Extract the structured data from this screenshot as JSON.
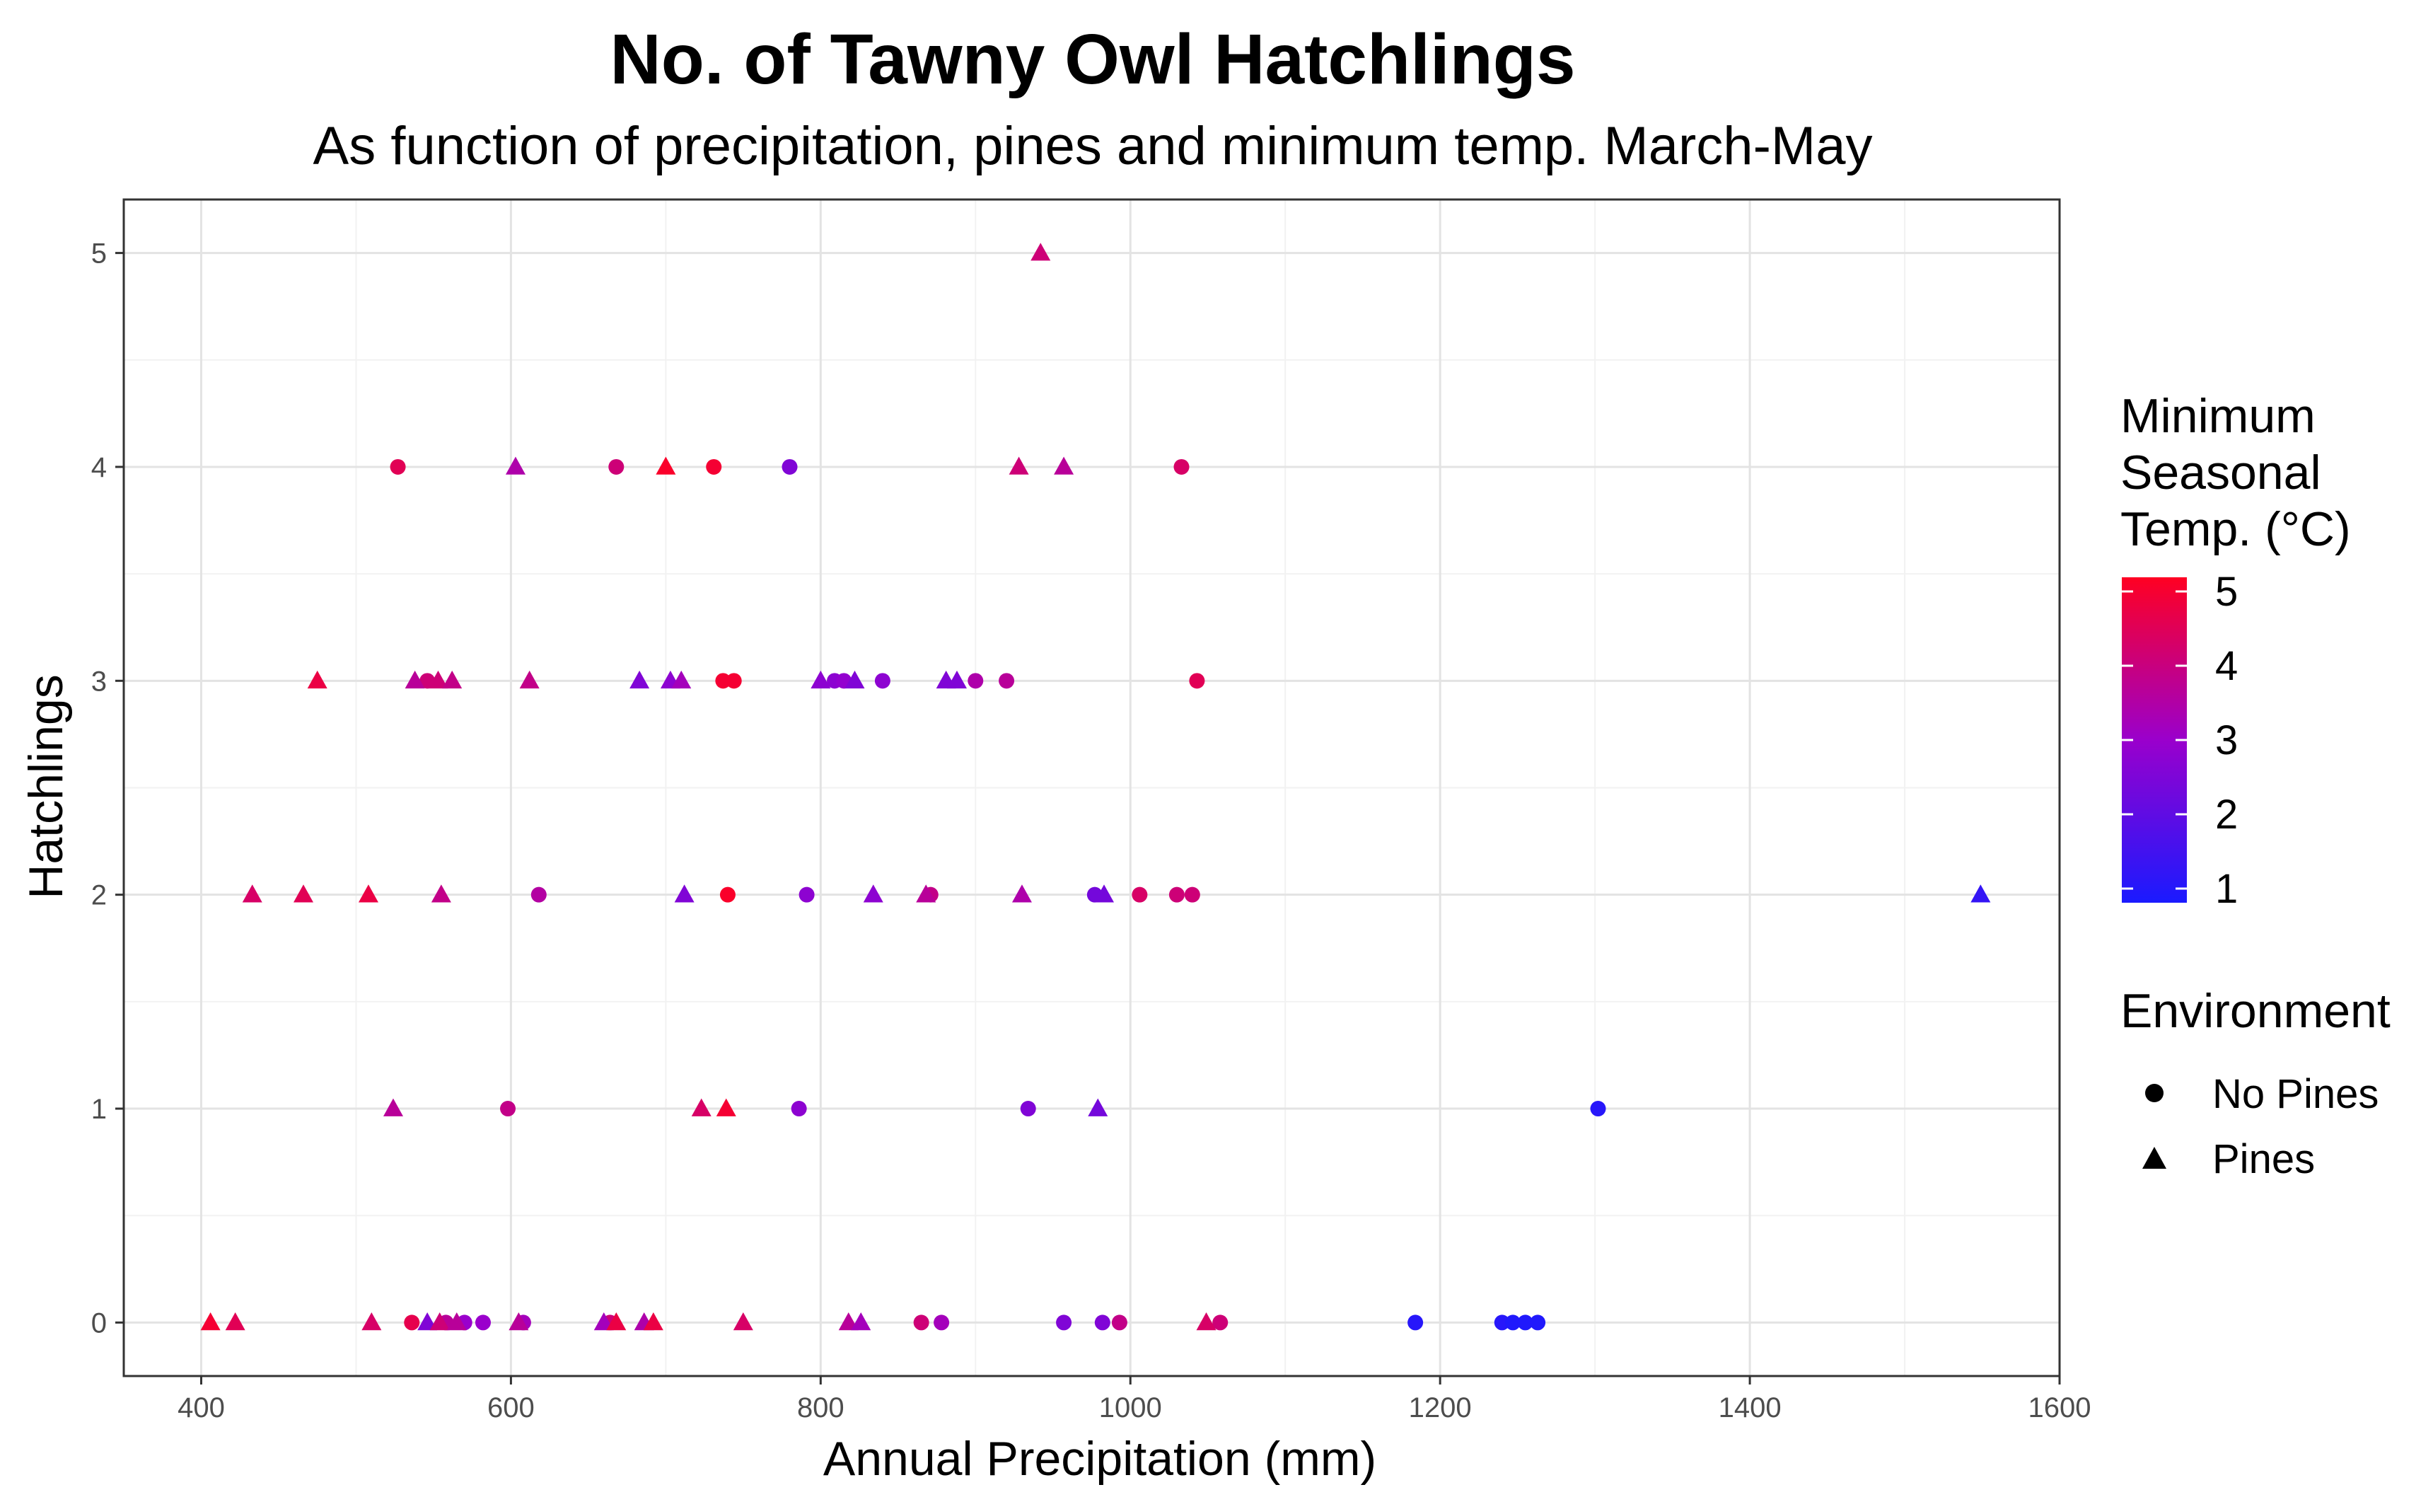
{
  "chart_data": {
    "type": "scatter",
    "title": "No. of Tawny Owl Hatchlings",
    "subtitle": "As function of precipitation, pines and minimum temp. March-May",
    "xlabel": "Annual Precipitation (mm)",
    "ylabel": "Hatchlings",
    "xlim": [
      350,
      1600
    ],
    "ylim": [
      -0.25,
      5.25
    ],
    "x_ticks": [
      "400",
      "600",
      "800",
      "1000",
      "1200",
      "1400",
      "1600"
    ],
    "y_ticks": [
      "0",
      "1",
      "2",
      "3",
      "4",
      "5"
    ],
    "grid": true,
    "color_legend": {
      "title_lines": [
        "Minimum",
        "Seasonal",
        "Temp. (°C)"
      ],
      "range": [
        1,
        5
      ],
      "ticks": [
        "1",
        "2",
        "3",
        "4",
        "5"
      ],
      "low_color": "#1a1aff",
      "mid_color": "#9a00cc",
      "high_color": "#ff0022"
    },
    "shape_legend": {
      "title": "Environment",
      "entries": [
        {
          "label": "No Pines",
          "shape": "circle"
        },
        {
          "label": "Pines",
          "shape": "triangle"
        }
      ]
    },
    "series": [
      {
        "name": "No Pines",
        "shape": "circle",
        "points": [
          {
            "x": 527,
            "y": 4,
            "temp": 4.4
          },
          {
            "x": 668,
            "y": 4,
            "temp": 4.0
          },
          {
            "x": 731,
            "y": 4,
            "temp": 4.8
          },
          {
            "x": 780,
            "y": 4,
            "temp": 2.6
          },
          {
            "x": 1033,
            "y": 4,
            "temp": 4.2
          },
          {
            "x": 546,
            "y": 3,
            "temp": 4.0
          },
          {
            "x": 737,
            "y": 3,
            "temp": 4.8
          },
          {
            "x": 744,
            "y": 3,
            "temp": 4.8
          },
          {
            "x": 809,
            "y": 3,
            "temp": 2.8
          },
          {
            "x": 815,
            "y": 3,
            "temp": 2.9
          },
          {
            "x": 840,
            "y": 3,
            "temp": 2.8
          },
          {
            "x": 900,
            "y": 3,
            "temp": 3.4
          },
          {
            "x": 920,
            "y": 3,
            "temp": 3.6
          },
          {
            "x": 1043,
            "y": 3,
            "temp": 4.4
          },
          {
            "x": 618,
            "y": 2,
            "temp": 3.5
          },
          {
            "x": 740,
            "y": 2,
            "temp": 4.9
          },
          {
            "x": 791,
            "y": 2,
            "temp": 2.8
          },
          {
            "x": 871,
            "y": 2,
            "temp": 3.8
          },
          {
            "x": 977,
            "y": 2,
            "temp": 2.4
          },
          {
            "x": 1006,
            "y": 2,
            "temp": 4.2
          },
          {
            "x": 1030,
            "y": 2,
            "temp": 4.0
          },
          {
            "x": 1040,
            "y": 2,
            "temp": 4.0
          },
          {
            "x": 598,
            "y": 1,
            "temp": 3.8
          },
          {
            "x": 786,
            "y": 1,
            "temp": 2.8
          },
          {
            "x": 934,
            "y": 1,
            "temp": 2.6
          },
          {
            "x": 1302,
            "y": 1,
            "temp": 1.2
          },
          {
            "x": 536,
            "y": 0,
            "temp": 4.5
          },
          {
            "x": 558,
            "y": 0,
            "temp": 3.6
          },
          {
            "x": 570,
            "y": 0,
            "temp": 3.0
          },
          {
            "x": 582,
            "y": 0,
            "temp": 3.0
          },
          {
            "x": 608,
            "y": 0,
            "temp": 3.2
          },
          {
            "x": 664,
            "y": 0,
            "temp": 4.0
          },
          {
            "x": 865,
            "y": 0,
            "temp": 4.0
          },
          {
            "x": 878,
            "y": 0,
            "temp": 3.2
          },
          {
            "x": 957,
            "y": 0,
            "temp": 2.6
          },
          {
            "x": 982,
            "y": 0,
            "temp": 2.6
          },
          {
            "x": 993,
            "y": 0,
            "temp": 3.8
          },
          {
            "x": 1058,
            "y": 0,
            "temp": 4.0
          },
          {
            "x": 1184,
            "y": 0,
            "temp": 1.2
          },
          {
            "x": 1240,
            "y": 0,
            "temp": 1.2
          },
          {
            "x": 1247,
            "y": 0,
            "temp": 1.1
          },
          {
            "x": 1255,
            "y": 0,
            "temp": 1.1
          },
          {
            "x": 1263,
            "y": 0,
            "temp": 1.1
          }
        ]
      },
      {
        "name": "Pines",
        "shape": "triangle",
        "points": [
          {
            "x": 942,
            "y": 5,
            "temp": 4.0
          },
          {
            "x": 603,
            "y": 4,
            "temp": 3.4
          },
          {
            "x": 700,
            "y": 4,
            "temp": 4.9
          },
          {
            "x": 928,
            "y": 4,
            "temp": 4.0
          },
          {
            "x": 957,
            "y": 4,
            "temp": 3.6
          },
          {
            "x": 475,
            "y": 3,
            "temp": 4.6
          },
          {
            "x": 538,
            "y": 3,
            "temp": 3.6
          },
          {
            "x": 553,
            "y": 3,
            "temp": 4.0
          },
          {
            "x": 562,
            "y": 3,
            "temp": 3.8
          },
          {
            "x": 612,
            "y": 3,
            "temp": 3.8
          },
          {
            "x": 683,
            "y": 3,
            "temp": 2.6
          },
          {
            "x": 703,
            "y": 3,
            "temp": 2.8
          },
          {
            "x": 710,
            "y": 3,
            "temp": 3.2
          },
          {
            "x": 800,
            "y": 3,
            "temp": 2.8
          },
          {
            "x": 822,
            "y": 3,
            "temp": 2.6
          },
          {
            "x": 881,
            "y": 3,
            "temp": 2.6
          },
          {
            "x": 888,
            "y": 3,
            "temp": 2.6
          },
          {
            "x": 433,
            "y": 2,
            "temp": 4.2
          },
          {
            "x": 466,
            "y": 2,
            "temp": 4.4
          },
          {
            "x": 508,
            "y": 2,
            "temp": 4.6
          },
          {
            "x": 555,
            "y": 2,
            "temp": 3.8
          },
          {
            "x": 712,
            "y": 2,
            "temp": 2.6
          },
          {
            "x": 834,
            "y": 2,
            "temp": 2.8
          },
          {
            "x": 868,
            "y": 2,
            "temp": 3.6
          },
          {
            "x": 930,
            "y": 2,
            "temp": 3.4
          },
          {
            "x": 983,
            "y": 2,
            "temp": 2.4
          },
          {
            "x": 1549,
            "y": 2,
            "temp": 1.4
          },
          {
            "x": 524,
            "y": 1,
            "temp": 3.6
          },
          {
            "x": 723,
            "y": 1,
            "temp": 4.2
          },
          {
            "x": 739,
            "y": 1,
            "temp": 4.8
          },
          {
            "x": 979,
            "y": 1,
            "temp": 2.4
          },
          {
            "x": 406,
            "y": 0,
            "temp": 4.8
          },
          {
            "x": 422,
            "y": 0,
            "temp": 4.4
          },
          {
            "x": 510,
            "y": 0,
            "temp": 4.2
          },
          {
            "x": 546,
            "y": 0,
            "temp": 2.6
          },
          {
            "x": 554,
            "y": 0,
            "temp": 4.0
          },
          {
            "x": 565,
            "y": 0,
            "temp": 3.6
          },
          {
            "x": 605,
            "y": 0,
            "temp": 3.6
          },
          {
            "x": 660,
            "y": 0,
            "temp": 3.2
          },
          {
            "x": 668,
            "y": 0,
            "temp": 4.6
          },
          {
            "x": 686,
            "y": 0,
            "temp": 3.4
          },
          {
            "x": 692,
            "y": 0,
            "temp": 4.6
          },
          {
            "x": 750,
            "y": 0,
            "temp": 4.2
          },
          {
            "x": 818,
            "y": 0,
            "temp": 3.6
          },
          {
            "x": 826,
            "y": 0,
            "temp": 3.2
          },
          {
            "x": 1049,
            "y": 0,
            "temp": 4.2
          }
        ]
      }
    ]
  }
}
